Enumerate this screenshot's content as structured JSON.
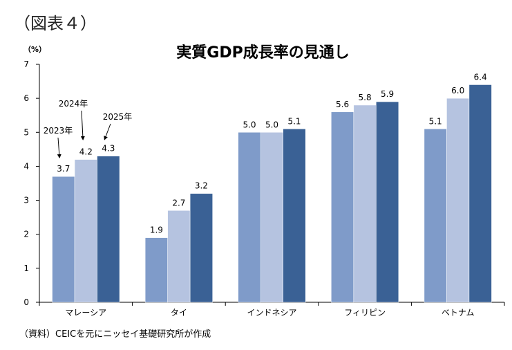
{
  "figure_label": "（図表４）",
  "source_note": "（資料）CEICを元にニッセイ基礎研究所が作成",
  "chart_data": {
    "type": "bar",
    "title": "実質GDP成長率の見通し",
    "unit_label": "（%）",
    "categories": [
      "マレーシア",
      "タイ",
      "インドネシア",
      "フィリピン",
      "ベトナム"
    ],
    "series": [
      {
        "name": "2023年",
        "values": [
          3.7,
          1.9,
          5.0,
          5.6,
          5.1
        ],
        "color": "#7f9bc9"
      },
      {
        "name": "2024年",
        "values": [
          4.2,
          2.7,
          5.0,
          5.8,
          6.0
        ],
        "color": "#b5c3e0"
      },
      {
        "name": "2025年",
        "values": [
          4.3,
          3.2,
          5.1,
          5.9,
          6.4
        ],
        "color": "#3a6195"
      }
    ],
    "ylim": [
      0,
      7
    ],
    "yticks": [
      0,
      1,
      2,
      3,
      4,
      5,
      6,
      7
    ],
    "data_labels": true,
    "legend": "annotated-arrows-on-first-group",
    "grid": false
  }
}
